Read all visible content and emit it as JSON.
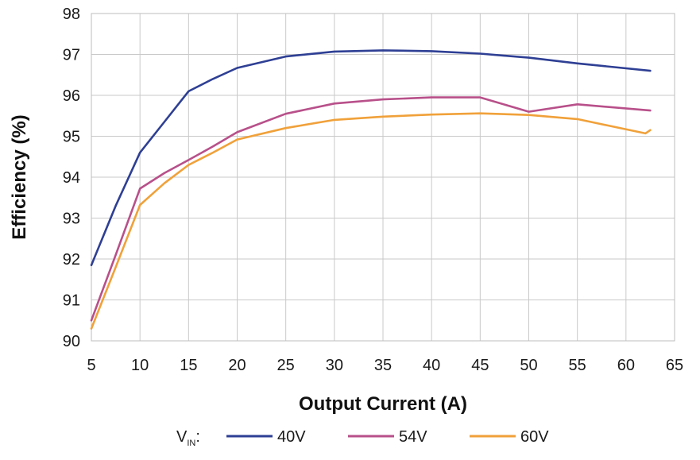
{
  "chart_data": {
    "type": "line",
    "xlabel": "Output Current (A)",
    "ylabel": "Efficiency (%)",
    "xlim": [
      5,
      65
    ],
    "ylim": [
      90,
      98
    ],
    "xticks": [
      5,
      10,
      15,
      20,
      25,
      30,
      35,
      40,
      45,
      50,
      55,
      60,
      65
    ],
    "yticks": [
      90,
      91,
      92,
      93,
      94,
      95,
      96,
      97,
      98
    ],
    "grid": true,
    "legend": {
      "placement": "bottom",
      "prefix_main": "V",
      "prefix_sub": "IN",
      "prefix_suffix": ":"
    },
    "series": [
      {
        "name": "40V",
        "color": "#2e3f94",
        "x": [
          5,
          7.5,
          10,
          12.5,
          15,
          17.5,
          20,
          25,
          30,
          35,
          40,
          45,
          50,
          55,
          62.5
        ],
        "y": [
          91.85,
          93.3,
          94.6,
          95.35,
          96.1,
          96.4,
          96.67,
          96.95,
          97.07,
          97.1,
          97.08,
          97.02,
          96.92,
          96.78,
          96.6
        ]
      },
      {
        "name": "54V",
        "color": "#b8508a",
        "x": [
          5,
          7.5,
          10,
          12.5,
          15,
          17.5,
          20,
          25,
          30,
          35,
          40,
          45,
          50,
          55,
          62.5
        ],
        "y": [
          90.5,
          92.1,
          93.72,
          94.1,
          94.42,
          94.75,
          95.1,
          95.55,
          95.8,
          95.9,
          95.95,
          95.95,
          95.6,
          95.78,
          95.63
        ]
      },
      {
        "name": "60V",
        "color": "#f0a13a",
        "x": [
          5,
          7.5,
          10,
          12.5,
          15,
          17.5,
          20,
          25,
          30,
          35,
          40,
          45,
          50,
          55,
          62,
          62.5
        ],
        "y": [
          90.3,
          91.8,
          93.32,
          93.85,
          94.3,
          94.6,
          94.92,
          95.2,
          95.4,
          95.48,
          95.53,
          95.56,
          95.52,
          95.42,
          95.07,
          95.15
        ]
      }
    ]
  }
}
